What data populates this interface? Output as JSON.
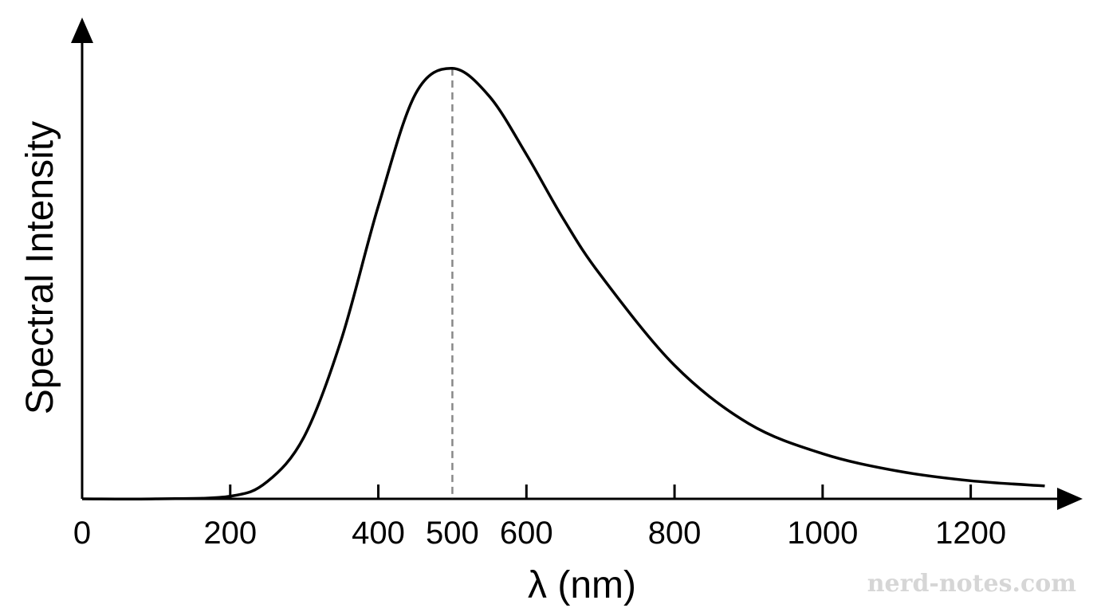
{
  "chart_data": {
    "type": "line",
    "title": "",
    "xlabel": "λ (nm)",
    "ylabel": "Spectral Intensity",
    "xlim": [
      0,
      1300
    ],
    "ylim": [
      0,
      1.07
    ],
    "x_ticks": [
      0,
      200,
      400,
      500,
      600,
      800,
      1000,
      1200
    ],
    "x_tick_labels": [
      "0",
      "200",
      "400",
      "500",
      "600",
      "800",
      "1000",
      "1200"
    ],
    "y_ticks": [],
    "grid": false,
    "legend": "none",
    "annotations": [
      {
        "type": "dashed-vertical-line",
        "x": 500,
        "from_y": 0,
        "to_y": 1.0,
        "color": "#888888"
      }
    ],
    "series": [
      {
        "x": [
          0,
          100,
          200,
          250,
          300,
          350,
          400,
          450,
          500,
          550,
          600,
          650,
          700,
          800,
          900,
          1000,
          1100,
          1200,
          1300
        ],
        "y": [
          0.0,
          0.0,
          0.006,
          0.04,
          0.145,
          0.37,
          0.68,
          0.94,
          1.0,
          0.935,
          0.8,
          0.65,
          0.52,
          0.31,
          0.175,
          0.105,
          0.065,
          0.042,
          0.03
        ]
      }
    ]
  },
  "watermark": "nerd-notes.com"
}
